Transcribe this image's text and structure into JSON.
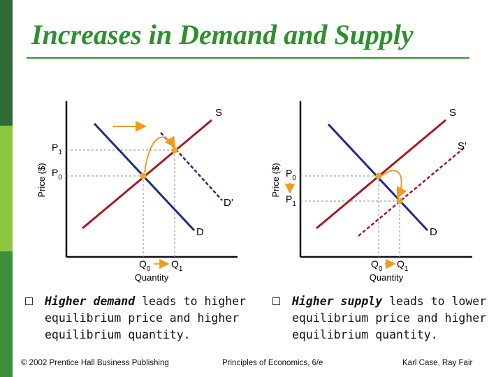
{
  "title": "Increases in Demand and Supply",
  "colors": {
    "green": "#2f8f2f",
    "demand": "#1c2a8c",
    "supply": "#a8191d",
    "arrow": "#f29a1d",
    "point": "#f2a51d"
  },
  "left_chart": {
    "ylabel": "Price ($)",
    "xlabel": "Quantity",
    "supply_label": "S",
    "demand_label": "D",
    "new_demand_label": "D'",
    "p1": "P",
    "p1_sub": "1",
    "p0": "P",
    "p0_sub": "0",
    "q0": "Q",
    "q0_sub": "0",
    "q1": "Q",
    "q1_sub": "1"
  },
  "right_chart": {
    "ylabel": "Price ($)",
    "xlabel": "Quantity",
    "supply_label": "S",
    "new_supply_label": "S'",
    "demand_label": "D",
    "p0": "P",
    "p0_sub": "0",
    "p1": "P",
    "p1_sub": "1",
    "q0": "Q",
    "q0_sub": "0",
    "q1": "Q",
    "q1_sub": "1"
  },
  "bullets": {
    "left_em": "Higher demand",
    "left_rest": " leads to higher equilibrium price and higher equilibrium quantity.",
    "right_em": "Higher supply",
    "right_rest": " leads to lower equilibrium price and higher equilibrium quantity."
  },
  "footer": {
    "copyright": "© 2002 Prentice Hall Business Publishing",
    "book": "Principles of Economics, 6/e",
    "authors": "Karl Case, Ray Fair"
  }
}
